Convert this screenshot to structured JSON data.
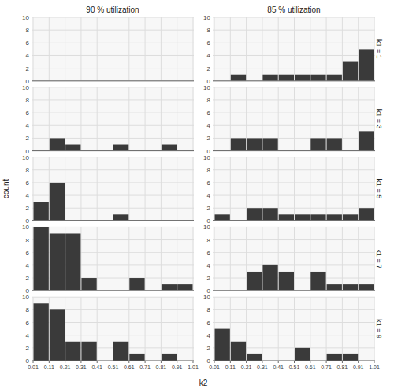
{
  "chart_data": [
    {
      "type": "histogram",
      "title": "90 % utilization",
      "bins": [
        0.01,
        0.11,
        0.21,
        0.31,
        0.41,
        0.51,
        0.61,
        0.71,
        0.81,
        0.91,
        1.01
      ],
      "values": [
        0,
        0,
        0,
        0,
        0,
        0,
        0,
        0,
        0,
        0
      ],
      "color": "#3a3a3a",
      "xlim": [
        0.0,
        1.015
      ],
      "ylim": [
        0,
        10
      ],
      "xticks": [
        0.01,
        0.11,
        0.21,
        0.31,
        0.41,
        0.51,
        0.61,
        0.71,
        0.81,
        0.91,
        1.01
      ],
      "yticks": [
        0,
        2,
        4,
        6,
        8,
        10
      ],
      "grid": true,
      "tick_labels": "y"
    },
    {
      "type": "histogram",
      "title": "85 % utilization",
      "annotation": "k1 = 1",
      "bins": [
        0.01,
        0.11,
        0.21,
        0.31,
        0.41,
        0.51,
        0.61,
        0.71,
        0.81,
        0.91,
        1.01
      ],
      "values": [
        0,
        1,
        0,
        1,
        1,
        1,
        1,
        1,
        3,
        5
      ],
      "color": "#3a3a3a",
      "xlim": [
        0.0,
        1.015
      ],
      "ylim": [
        0,
        10
      ],
      "xticks": [
        0.01,
        0.11,
        0.21,
        0.31,
        0.41,
        0.51,
        0.61,
        0.71,
        0.81,
        0.91,
        1.01
      ],
      "yticks": [
        0,
        2,
        4,
        6,
        8,
        10
      ],
      "grid": true,
      "tick_labels": "y"
    },
    {
      "type": "histogram",
      "bins": [
        0.01,
        0.11,
        0.21,
        0.31,
        0.41,
        0.51,
        0.61,
        0.71,
        0.81,
        0.91,
        1.01
      ],
      "values": [
        0,
        2,
        1,
        0,
        0,
        1,
        0,
        0,
        1,
        0
      ],
      "color": "#3a3a3a",
      "xlim": [
        0.0,
        1.015
      ],
      "ylim": [
        0,
        10
      ],
      "xticks": [
        0.01,
        0.11,
        0.21,
        0.31,
        0.41,
        0.51,
        0.61,
        0.71,
        0.81,
        0.91,
        1.01
      ],
      "yticks": [
        0,
        2,
        4,
        6,
        8,
        10
      ],
      "grid": true,
      "tick_labels": "y"
    },
    {
      "type": "histogram",
      "annotation": "k1 = 3",
      "bins": [
        0.01,
        0.11,
        0.21,
        0.31,
        0.41,
        0.51,
        0.61,
        0.71,
        0.81,
        0.91,
        1.01
      ],
      "values": [
        0,
        2,
        2,
        2,
        0,
        0,
        2,
        2,
        0,
        3
      ],
      "color": "#3a3a3a",
      "xlim": [
        0.0,
        1.015
      ],
      "ylim": [
        0,
        10
      ],
      "xticks": [
        0.01,
        0.11,
        0.21,
        0.31,
        0.41,
        0.51,
        0.61,
        0.71,
        0.81,
        0.91,
        1.01
      ],
      "yticks": [
        0,
        2,
        4,
        6,
        8,
        10
      ],
      "grid": true,
      "tick_labels": "y"
    },
    {
      "type": "histogram",
      "ylabel": "count",
      "bins": [
        0.01,
        0.11,
        0.21,
        0.31,
        0.41,
        0.51,
        0.61,
        0.71,
        0.81,
        0.91,
        1.01
      ],
      "values": [
        3,
        6,
        0,
        0,
        0,
        1,
        0,
        0,
        0,
        0
      ],
      "color": "#3a3a3a",
      "xlim": [
        0.0,
        1.015
      ],
      "ylim": [
        0,
        10
      ],
      "xticks": [
        0.01,
        0.11,
        0.21,
        0.31,
        0.41,
        0.51,
        0.61,
        0.71,
        0.81,
        0.91,
        1.01
      ],
      "yticks": [
        0,
        2,
        4,
        6,
        8,
        10
      ],
      "grid": true,
      "tick_labels": "y"
    },
    {
      "type": "histogram",
      "annotation": "k1 = 5",
      "bins": [
        0.01,
        0.11,
        0.21,
        0.31,
        0.41,
        0.51,
        0.61,
        0.71,
        0.81,
        0.91,
        1.01
      ],
      "values": [
        1,
        0,
        2,
        2,
        1,
        1,
        1,
        1,
        1,
        2
      ],
      "color": "#3a3a3a",
      "xlim": [
        0.0,
        1.015
      ],
      "ylim": [
        0,
        10
      ],
      "xticks": [
        0.01,
        0.11,
        0.21,
        0.31,
        0.41,
        0.51,
        0.61,
        0.71,
        0.81,
        0.91,
        1.01
      ],
      "yticks": [
        0,
        2,
        4,
        6,
        8,
        10
      ],
      "grid": true,
      "tick_labels": "y"
    },
    {
      "type": "histogram",
      "bins": [
        0.01,
        0.11,
        0.21,
        0.31,
        0.41,
        0.51,
        0.61,
        0.71,
        0.81,
        0.91,
        1.01
      ],
      "values": [
        10,
        9,
        9,
        2,
        0,
        0,
        2,
        0,
        1,
        1
      ],
      "color": "#3a3a3a",
      "xlim": [
        0.0,
        1.015
      ],
      "ylim": [
        0,
        10
      ],
      "xticks": [
        0.01,
        0.11,
        0.21,
        0.31,
        0.41,
        0.51,
        0.61,
        0.71,
        0.81,
        0.91,
        1.01
      ],
      "yticks": [
        0,
        2,
        4,
        6,
        8,
        10
      ],
      "grid": true,
      "tick_labels": "y"
    },
    {
      "type": "histogram",
      "annotation": "k1 = 7",
      "bins": [
        0.01,
        0.11,
        0.21,
        0.31,
        0.41,
        0.51,
        0.61,
        0.71,
        0.81,
        0.91,
        1.01
      ],
      "values": [
        0,
        0,
        3,
        4,
        3,
        0,
        3,
        1,
        1,
        1
      ],
      "color": "#3a3a3a",
      "xlim": [
        0.0,
        1.015
      ],
      "ylim": [
        0,
        10
      ],
      "xticks": [
        0.01,
        0.11,
        0.21,
        0.31,
        0.41,
        0.51,
        0.61,
        0.71,
        0.81,
        0.91,
        1.01
      ],
      "yticks": [
        0,
        2,
        4,
        6,
        8,
        10
      ],
      "grid": true,
      "tick_labels": "y"
    },
    {
      "type": "histogram",
      "xlabel": "k2",
      "bins": [
        0.01,
        0.11,
        0.21,
        0.31,
        0.41,
        0.51,
        0.61,
        0.71,
        0.81,
        0.91,
        1.01
      ],
      "values": [
        9,
        8,
        3,
        3,
        0,
        3,
        1,
        0,
        1,
        0
      ],
      "color": "#3a3a3a",
      "xlim": [
        0.0,
        1.015
      ],
      "ylim": [
        0,
        10
      ],
      "xticks": [
        0.01,
        0.11,
        0.21,
        0.31,
        0.41,
        0.51,
        0.61,
        0.71,
        0.81,
        0.91,
        1.01
      ],
      "yticks": [
        0,
        2,
        4,
        6,
        8,
        10
      ],
      "grid": true
    },
    {
      "type": "histogram",
      "annotation": "k1 = 9",
      "bins": [
        0.01,
        0.11,
        0.21,
        0.31,
        0.41,
        0.51,
        0.61,
        0.71,
        0.81,
        0.91,
        1.01
      ],
      "values": [
        5,
        3,
        1,
        0,
        0,
        2,
        0,
        1,
        1,
        0
      ],
      "color": "#3a3a3a",
      "xlim": [
        0.0,
        1.015
      ],
      "ylim": [
        0,
        10
      ],
      "xticks": [
        0.01,
        0.11,
        0.21,
        0.31,
        0.41,
        0.51,
        0.61,
        0.71,
        0.81,
        0.91,
        1.01
      ],
      "yticks": [
        0,
        2,
        4,
        6,
        8,
        10
      ],
      "grid": true
    }
  ]
}
